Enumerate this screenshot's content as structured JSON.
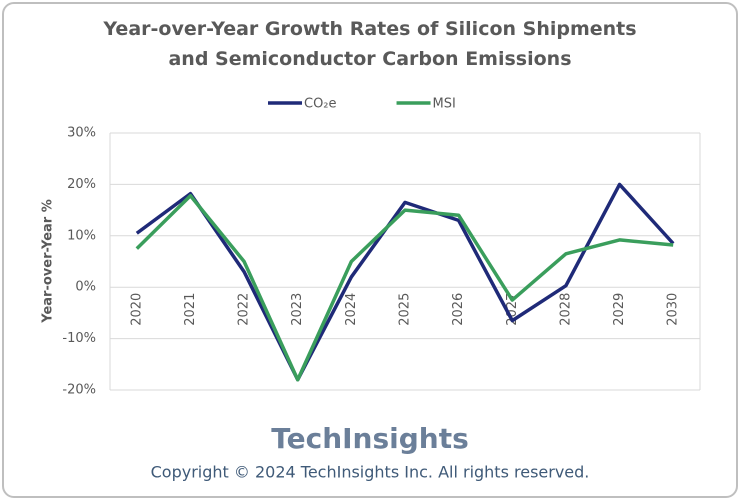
{
  "chart_data": {
    "type": "line",
    "title": "Year-over-Year Growth Rates of Silicon Shipments and Semiconductor Carbon Emissions",
    "y_label": "Year-over-Year %",
    "categories": [
      "2020",
      "2021",
      "2022",
      "2023",
      "2024",
      "2025",
      "2026",
      "2027",
      "2028",
      "2029",
      "2030"
    ],
    "series": [
      {
        "name": "CO₂e",
        "color": "#1f2a78",
        "values": [
          10.5,
          18.2,
          3,
          -18,
          2,
          16.5,
          13,
          -6.5,
          0.3,
          20,
          8.5
        ]
      },
      {
        "name": "MSI",
        "color": "#3a9e5c",
        "values": [
          7.5,
          17.8,
          5,
          -18,
          5,
          15,
          14,
          -2.5,
          6.5,
          9.2,
          8.2
        ]
      }
    ],
    "ylim": [
      -20,
      30
    ],
    "yticks": [
      {
        "value": -20,
        "label": "-20%"
      },
      {
        "value": -10,
        "label": "-10%"
      },
      {
        "value": 0,
        "label": "0%"
      },
      {
        "value": 10,
        "label": "10%"
      },
      {
        "value": 20,
        "label": "20%"
      },
      {
        "value": 30,
        "label": "30%"
      }
    ],
    "grid": true,
    "legend": "top",
    "logo": "TechInsights",
    "copyright": "Copyright © 2024 TechInsights Inc.  All rights reserved."
  }
}
